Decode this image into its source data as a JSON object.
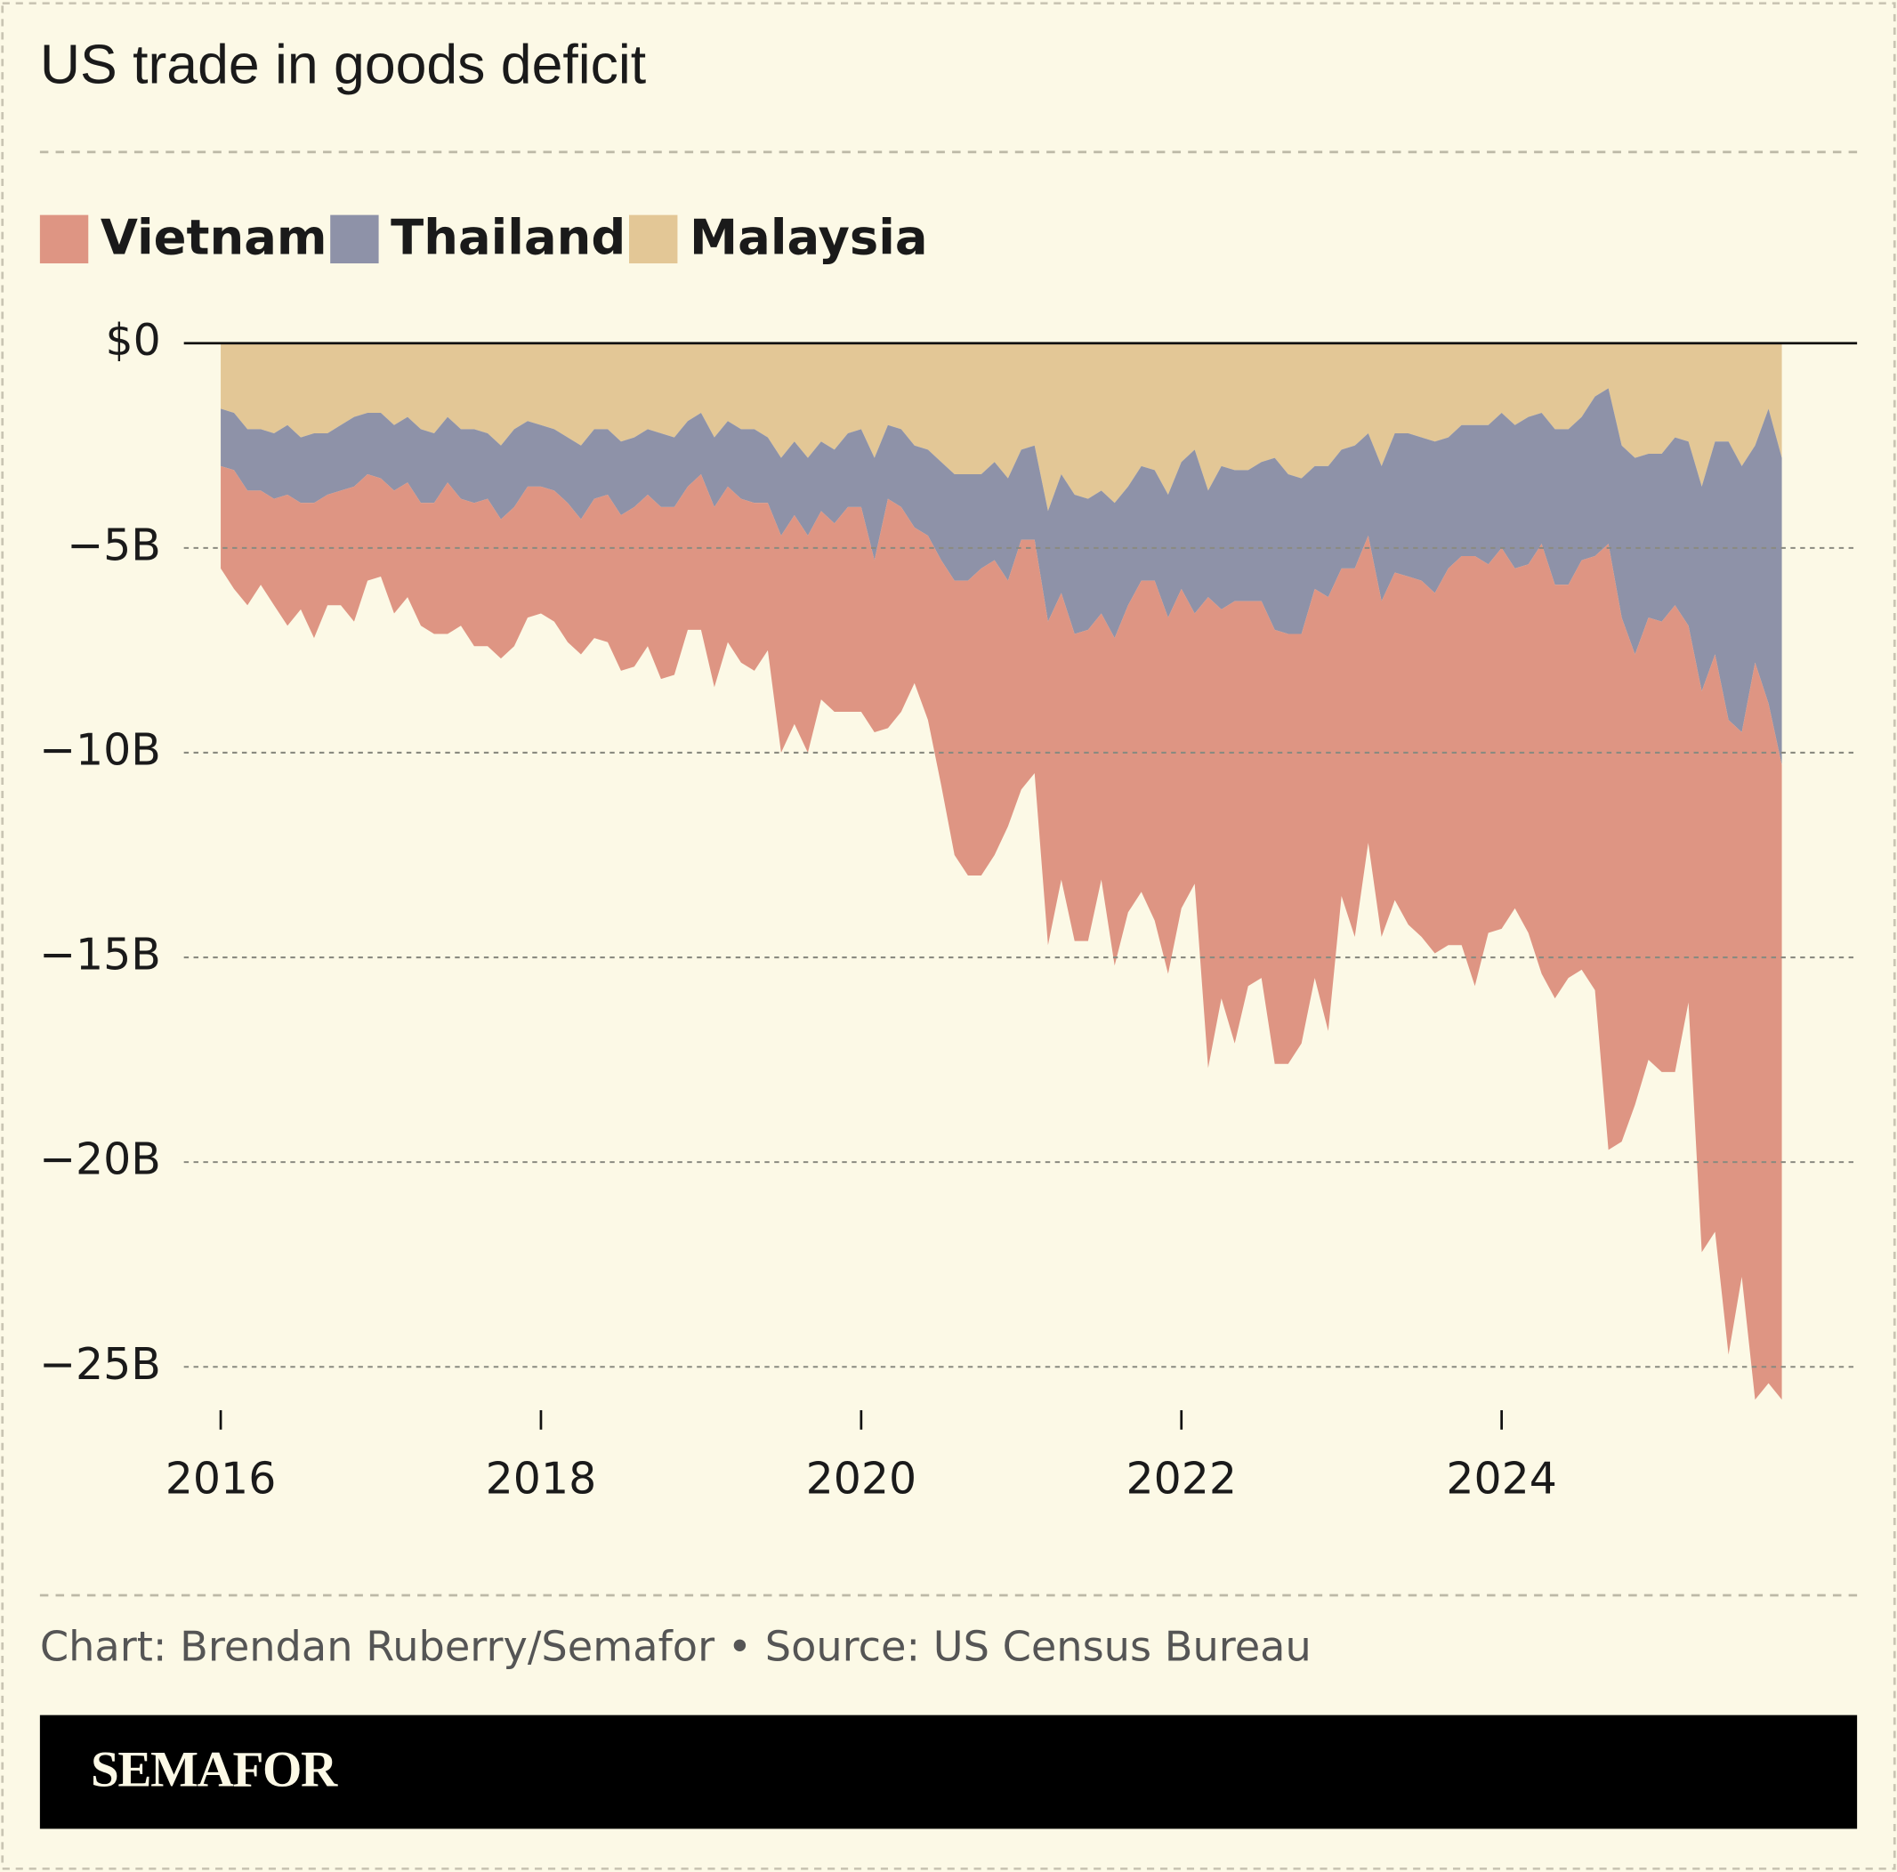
{
  "chart_data": {
    "type": "stacked-area",
    "title": "US trade in goods deficit",
    "source": "Chart: Brendan Ruberry/Semafor • Source: US Census Bureau",
    "brand": "SEMAFOR",
    "grid": true,
    "xlim": [
      2015.77,
      2026.22
    ],
    "xticks": [
      2016,
      2018,
      2020,
      2022,
      2024
    ],
    "ylim": [
      -26,
      0
    ],
    "yticks": [
      {
        "value": 0,
        "label": "$0"
      },
      {
        "value": -5,
        "label": "−5B"
      },
      {
        "value": -10,
        "label": "−10B"
      },
      {
        "value": -15,
        "label": "−15B"
      },
      {
        "value": -20,
        "label": "−20B"
      },
      {
        "value": -25,
        "label": "−25B"
      }
    ],
    "x": [
      2016,
      2016.083,
      2016.167,
      2016.25,
      2016.333,
      2016.417,
      2016.5,
      2016.583,
      2016.667,
      2016.75,
      2016.833,
      2016.917,
      2017,
      2017.083,
      2017.167,
      2017.25,
      2017.333,
      2017.417,
      2017.5,
      2017.583,
      2017.667,
      2017.75,
      2017.833,
      2017.917,
      2018,
      2018.083,
      2018.167,
      2018.25,
      2018.333,
      2018.417,
      2018.5,
      2018.583,
      2018.667,
      2018.75,
      2018.833,
      2018.917,
      2019,
      2019.083,
      2019.167,
      2019.25,
      2019.333,
      2019.417,
      2019.5,
      2019.583,
      2019.667,
      2019.75,
      2019.833,
      2019.917,
      2020,
      2020.083,
      2020.167,
      2020.25,
      2020.333,
      2020.417,
      2020.5,
      2020.583,
      2020.667,
      2020.75,
      2020.833,
      2020.917,
      2021,
      2021.083,
      2021.167,
      2021.25,
      2021.333,
      2021.417,
      2021.5,
      2021.583,
      2021.667,
      2021.75,
      2021.833,
      2021.917,
      2022,
      2022.083,
      2022.167,
      2022.25,
      2022.333,
      2022.417,
      2022.5,
      2022.583,
      2022.667,
      2022.75,
      2022.833,
      2022.917,
      2023,
      2023.083,
      2023.167,
      2023.25,
      2023.333,
      2023.417,
      2023.5,
      2023.583,
      2023.667,
      2023.75,
      2023.833,
      2023.917,
      2024,
      2024.083,
      2024.167,
      2024.25,
      2024.333,
      2024.417,
      2024.5,
      2024.583,
      2024.667,
      2024.75,
      2024.833,
      2024.917,
      2025,
      2025.083,
      2025.167,
      2025.25,
      2025.333,
      2025.417,
      2025.5,
      2025.583,
      2025.667,
      2025.75
    ],
    "series": [
      {
        "name": "Vietnam",
        "color": "#de9583",
        "values": [
          -2.5,
          -2.9,
          -2.8,
          -2.3,
          -2.6,
          -3.2,
          -2.6,
          -3.3,
          -2.7,
          -2.8,
          -3.3,
          -2.6,
          -2.4,
          -3.0,
          -2.8,
          -3.0,
          -3.2,
          -3.7,
          -3.1,
          -3.5,
          -3.6,
          -3.4,
          -3.4,
          -3.2,
          -3.1,
          -3.2,
          -3.4,
          -3.3,
          -3.4,
          -3.6,
          -3.8,
          -3.9,
          -3.7,
          -4.2,
          -4.1,
          -3.5,
          -3.8,
          -4.4,
          -3.8,
          -4.0,
          -4.1,
          -3.6,
          -5.3,
          -5.1,
          -5.3,
          -4.6,
          -4.6,
          -5.0,
          -5.0,
          -4.2,
          -5.6,
          -5.0,
          -3.8,
          -4.5,
          -5.5,
          -6.7,
          -7.2,
          -7.5,
          -7.2,
          -6.0,
          -6.1,
          -5.7,
          -7.9,
          -7.0,
          -7.5,
          -7.6,
          -6.5,
          -8.0,
          -7.5,
          -7.6,
          -8.3,
          -8.7,
          -7.8,
          -6.6,
          -11.5,
          -9.5,
          -10.8,
          -9.4,
          -9.2,
          -10.6,
          -10.5,
          -10.0,
          -9.5,
          -10.6,
          -8.0,
          -9.0,
          -7.5,
          -8.2,
          -8.0,
          -8.5,
          -8.7,
          -8.8,
          -9.2,
          -9.5,
          -10.5,
          -9.0,
          -9.3,
          -8.3,
          -9.0,
          -10.5,
          -10.1,
          -9.6,
          -10.0,
          -10.6,
          -14.8,
          -12.8,
          -11.0,
          -10.8,
          -11.0,
          -11.4,
          -9.2,
          -13.7,
          -14.1,
          -15.5,
          -13.3,
          -18.0,
          -16.6,
          -15.5
        ]
      },
      {
        "name": "Thailand",
        "color": "#8e92a8",
        "values": [
          -1.4,
          -1.4,
          -1.5,
          -1.5,
          -1.6,
          -1.7,
          -1.6,
          -1.7,
          -1.5,
          -1.6,
          -1.7,
          -1.5,
          -1.6,
          -1.6,
          -1.6,
          -1.8,
          -1.7,
          -1.6,
          -1.7,
          -1.8,
          -1.6,
          -1.8,
          -1.9,
          -1.6,
          -1.5,
          -1.5,
          -1.6,
          -1.8,
          -1.7,
          -1.6,
          -1.8,
          -1.7,
          -1.6,
          -1.8,
          -1.7,
          -1.6,
          -1.5,
          -1.7,
          -1.6,
          -1.7,
          -1.8,
          -1.6,
          -1.9,
          -1.8,
          -1.9,
          -1.7,
          -1.8,
          -1.8,
          -1.9,
          -2.5,
          -1.8,
          -1.9,
          -2.0,
          -2.1,
          -2.4,
          -2.6,
          -2.6,
          -2.3,
          -2.4,
          -2.5,
          -2.2,
          -2.3,
          -2.7,
          -2.9,
          -3.4,
          -3.2,
          -3.0,
          -3.3,
          -2.9,
          -2.8,
          -2.7,
          -3.0,
          -3.1,
          -4.0,
          -2.6,
          -3.5,
          -3.2,
          -3.2,
          -3.4,
          -4.2,
          -3.9,
          -3.8,
          -3.0,
          -3.2,
          -2.9,
          -3.0,
          -2.5,
          -3.3,
          -3.4,
          -3.5,
          -3.5,
          -3.7,
          -3.2,
          -3.2,
          -3.2,
          -3.4,
          -3.3,
          -3.5,
          -3.6,
          -3.2,
          -3.8,
          -3.8,
          -3.5,
          -3.9,
          -3.8,
          -4.2,
          -4.8,
          -4.0,
          -4.1,
          -4.1,
          -4.5,
          -5.0,
          -5.2,
          -6.8,
          -6.5,
          -5.3,
          -7.2,
          -7.5
        ]
      },
      {
        "name": "Malaysia",
        "color": "#e3c796",
        "values": [
          -1.6,
          -1.7,
          -2.1,
          -2.1,
          -2.2,
          -2.0,
          -2.3,
          -2.2,
          -2.2,
          -2.0,
          -1.8,
          -1.7,
          -1.7,
          -2.0,
          -1.8,
          -2.1,
          -2.2,
          -1.8,
          -2.1,
          -2.1,
          -2.2,
          -2.5,
          -2.1,
          -1.9,
          -2.0,
          -2.1,
          -2.3,
          -2.5,
          -2.1,
          -2.1,
          -2.4,
          -2.3,
          -2.1,
          -2.2,
          -2.3,
          -1.9,
          -1.7,
          -2.3,
          -1.9,
          -2.1,
          -2.1,
          -2.3,
          -2.8,
          -2.4,
          -2.8,
          -2.4,
          -2.6,
          -2.2,
          -2.1,
          -2.8,
          -2.0,
          -2.1,
          -2.5,
          -2.6,
          -2.9,
          -3.2,
          -3.2,
          -3.2,
          -2.9,
          -3.3,
          -2.6,
          -2.5,
          -4.1,
          -3.2,
          -3.7,
          -3.8,
          -3.6,
          -3.9,
          -3.5,
          -3.0,
          -3.1,
          -3.7,
          -2.9,
          -2.6,
          -3.6,
          -3.0,
          -3.1,
          -3.1,
          -2.9,
          -2.8,
          -3.2,
          -3.3,
          -3.0,
          -3.0,
          -2.6,
          -2.5,
          -2.2,
          -3.0,
          -2.2,
          -2.2,
          -2.3,
          -2.4,
          -2.3,
          -2.0,
          -2.0,
          -2.0,
          -1.7,
          -2.0,
          -1.8,
          -1.7,
          -2.1,
          -2.1,
          -1.8,
          -1.3,
          -1.1,
          -2.5,
          -2.8,
          -2.7,
          -2.7,
          -2.3,
          -2.4,
          -3.5,
          -2.4,
          -2.4,
          -3.0,
          -2.5,
          -1.6,
          -2.8
        ]
      }
    ]
  }
}
